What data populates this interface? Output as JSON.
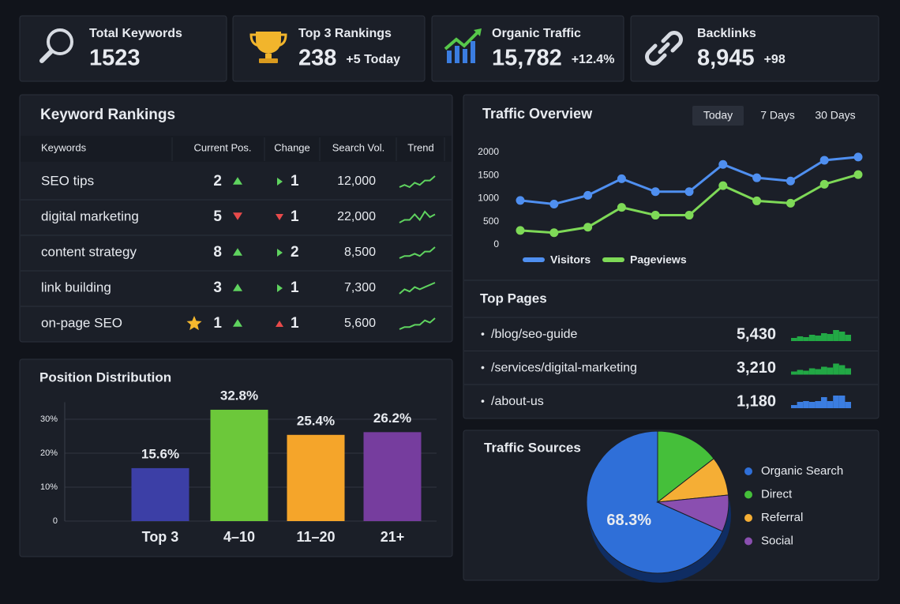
{
  "stats": [
    {
      "label": "Total Keywords",
      "value": "1523"
    },
    {
      "label": "Top 3 Rankings",
      "value": "238",
      "delta": "+5 Today"
    },
    {
      "label": "Organic Traffic",
      "value": "15,782",
      "delta": "+12.4%"
    },
    {
      "label": "Backlinks",
      "value": "8,945",
      "delta": "+98"
    }
  ],
  "keyword_rankings": {
    "title": "Keyword Rankings",
    "columns": [
      "Keywords",
      "Current Pos.",
      "Change",
      "Search Vol.",
      "Trend"
    ],
    "rows": [
      {
        "keyword": "SEO tips",
        "position": "2",
        "position_dir": "up",
        "change": "1",
        "change_dir": "right",
        "volume": "12,000",
        "trend": [
          2,
          3,
          2,
          4,
          3,
          5,
          5,
          7
        ]
      },
      {
        "keyword": "digital marketing",
        "position": "5",
        "position_dir": "down",
        "change": "1",
        "change_dir": "down",
        "volume": "22,000",
        "trend": [
          2,
          3,
          3,
          5,
          3,
          6,
          4,
          5
        ]
      },
      {
        "keyword": "content strategy",
        "position": "8",
        "position_dir": "up",
        "change": "2",
        "change_dir": "right",
        "volume": "8,500",
        "trend": [
          2,
          3,
          3,
          4,
          3,
          5,
          5,
          7
        ]
      },
      {
        "keyword": "link building",
        "position": "3",
        "position_dir": "up",
        "change": "1",
        "change_dir": "right",
        "volume": "7,300",
        "trend": [
          2,
          4,
          3,
          5,
          4,
          5,
          6,
          7
        ]
      },
      {
        "keyword": "on-page SEO",
        "position": "1",
        "position_dir": "up",
        "change": "1",
        "change_dir": "up",
        "volume": "5,600",
        "trend": [
          2,
          3,
          3,
          4,
          4,
          6,
          5,
          7
        ],
        "starred": true
      }
    ]
  },
  "traffic_overview": {
    "type": "line",
    "title": "Traffic Overview",
    "tabs": [
      "Today",
      "7 Days",
      "30 Days"
    ],
    "active_tab": 0,
    "categories": [
      null,
      null,
      null,
      null,
      null,
      null,
      null,
      null,
      null,
      null,
      null
    ],
    "series": [
      {
        "name": "Visitors",
        "color": "#4f8ff0",
        "values": [
          960,
          880,
          1070,
          1430,
          1150,
          1150,
          1740,
          1450,
          1380,
          1830,
          1900
        ]
      },
      {
        "name": "Pageviews",
        "color": "#7ed957",
        "values": [
          310,
          260,
          380,
          810,
          640,
          640,
          1280,
          950,
          900,
          1310,
          1520
        ]
      }
    ],
    "ylim": [
      0,
      2000
    ],
    "yticks": [
      0,
      500,
      1000,
      1500,
      2000
    ]
  },
  "top_pages": {
    "title": "Top Pages",
    "rows": [
      {
        "page": "/blog/seo-guide",
        "views": "5,430",
        "color": "#22a845"
      },
      {
        "page": "/services/digital-marketing",
        "views": "3,210",
        "color": "#22a845"
      },
      {
        "page": "/about-us",
        "views": "1,180",
        "color": "#3b7de0"
      }
    ]
  },
  "position_distribution": {
    "type": "bar",
    "title": "Position Distribution",
    "categories": [
      "Top 3",
      "4–10",
      "11–20",
      "21+"
    ],
    "values": [
      15.6,
      32.8,
      25.4,
      26.2
    ],
    "value_labels": [
      "15.6%",
      "32.8%",
      "25.4%",
      "26.2%"
    ],
    "colors": [
      "#3c3fa6",
      "#6cc83a",
      "#f5a52a",
      "#763d9e"
    ],
    "ylim": [
      0,
      35
    ],
    "yticks": [
      0,
      {
        "value": 10,
        "label": "10%"
      },
      {
        "value": 20,
        "label": "20%"
      },
      {
        "value": 30,
        "label": "30%"
      }
    ],
    "grid": true
  },
  "traffic_sources": {
    "type": "pie",
    "title": "Traffic Sources",
    "categories": [
      "Organic Search",
      "Direct",
      "Referral",
      "Social"
    ],
    "values": [
      68.3,
      14.5,
      8.9,
      8.3
    ],
    "value_labels": [
      "68.3%",
      null,
      null,
      null
    ],
    "colors": [
      "#2f6fd8",
      "#45bf3a",
      "#f5ae35",
      "#8a4fb0"
    ]
  }
}
